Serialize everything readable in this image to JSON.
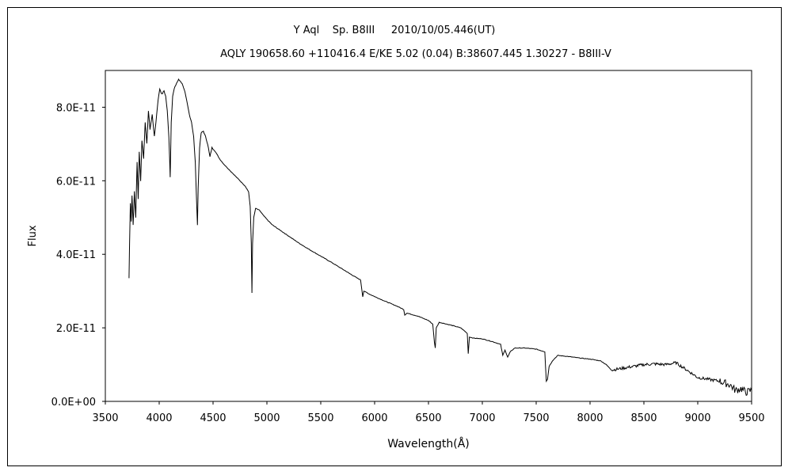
{
  "chart_data": {
    "type": "line",
    "title_lines": [
      "Y Aql    Sp. B8III     2010/10/05.446(UT)",
      "AQLY 190658.60 +110416.4 E/KE 5.02 (0.04) B:38607.445 1.30227 - B8III-V"
    ],
    "xlabel": "Wavelength(Å)",
    "ylabel": "Flux",
    "xlim": [
      3500,
      9500
    ],
    "ylim": [
      0,
      9e-11
    ],
    "xticks": [
      3500,
      4000,
      4500,
      5000,
      5500,
      6000,
      6500,
      7000,
      7500,
      8000,
      8500,
      9000,
      9500
    ],
    "yticks": [
      0,
      2e-11,
      4e-11,
      6e-11,
      8e-11
    ],
    "xtick_labels": [
      "3500",
      "4000",
      "4500",
      "5000",
      "5500",
      "6000",
      "6500",
      "7000",
      "7500",
      "8000",
      "8500",
      "9000",
      "9500"
    ],
    "ytick_labels": [
      "0.0E+00",
      "2.0E-11",
      "4.0E-11",
      "6.0E-11",
      "8.0E-11"
    ],
    "grid": false,
    "line_color": "#000000",
    "series": [
      {
        "points": [
          [
            3720,
            3.35e-11
          ],
          [
            3725,
            4.3e-11
          ],
          [
            3732,
            5.4e-11
          ],
          [
            3740,
            4.9e-11
          ],
          [
            3748,
            5.6e-11
          ],
          [
            3758,
            4.8e-11
          ],
          [
            3770,
            5.7e-11
          ],
          [
            3782,
            5e-11
          ],
          [
            3795,
            6.5e-11
          ],
          [
            3805,
            5.5e-11
          ],
          [
            3815,
            6.8e-11
          ],
          [
            3828,
            6e-11
          ],
          [
            3840,
            7.1e-11
          ],
          [
            3855,
            6.6e-11
          ],
          [
            3870,
            7.6e-11
          ],
          [
            3885,
            7e-11
          ],
          [
            3900,
            7.9e-11
          ],
          [
            3915,
            7.4e-11
          ],
          [
            3935,
            7.8e-11
          ],
          [
            3955,
            7.2e-11
          ],
          [
            3970,
            7.6e-11
          ],
          [
            3990,
            8.2e-11
          ],
          [
            4005,
            8.5e-11
          ],
          [
            4025,
            8.35e-11
          ],
          [
            4045,
            8.45e-11
          ],
          [
            4060,
            8.3e-11
          ],
          [
            4075,
            7.9e-11
          ],
          [
            4090,
            7.2e-11
          ],
          [
            4102,
            6.1e-11
          ],
          [
            4112,
            7.6e-11
          ],
          [
            4125,
            8.3e-11
          ],
          [
            4140,
            8.5e-11
          ],
          [
            4160,
            8.65e-11
          ],
          [
            4180,
            8.75e-11
          ],
          [
            4200,
            8.7e-11
          ],
          [
            4220,
            8.6e-11
          ],
          [
            4240,
            8.4e-11
          ],
          [
            4260,
            8.1e-11
          ],
          [
            4280,
            7.8e-11
          ],
          [
            4300,
            7.6e-11
          ],
          [
            4320,
            7.2e-11
          ],
          [
            4335,
            6.5e-11
          ],
          [
            4348,
            5.4e-11
          ],
          [
            4355,
            4.8e-11
          ],
          [
            4362,
            5.8e-11
          ],
          [
            4375,
            6.9e-11
          ],
          [
            4390,
            7.3e-11
          ],
          [
            4410,
            7.35e-11
          ],
          [
            4430,
            7.2e-11
          ],
          [
            4450,
            7e-11
          ],
          [
            4471,
            6.65e-11
          ],
          [
            4490,
            6.9e-11
          ],
          [
            4520,
            6.8e-11
          ],
          [
            4560,
            6.6e-11
          ],
          [
            4600,
            6.45e-11
          ],
          [
            4650,
            6.3e-11
          ],
          [
            4700,
            6.15e-11
          ],
          [
            4750,
            6e-11
          ],
          [
            4800,
            5.85e-11
          ],
          [
            4830,
            5.7e-11
          ],
          [
            4845,
            5.3e-11
          ],
          [
            4855,
            4.3e-11
          ],
          [
            4861,
            2.95e-11
          ],
          [
            4867,
            4.3e-11
          ],
          [
            4878,
            5e-11
          ],
          [
            4895,
            5.25e-11
          ],
          [
            4930,
            5.2e-11
          ],
          [
            4970,
            5.05e-11
          ],
          [
            5000,
            4.95e-11
          ],
          [
            5050,
            4.8e-11
          ],
          [
            5100,
            4.7e-11
          ],
          [
            5150,
            4.6e-11
          ],
          [
            5200,
            4.5e-11
          ],
          [
            5300,
            4.3e-11
          ],
          [
            5400,
            4.12e-11
          ],
          [
            5500,
            3.95e-11
          ],
          [
            5600,
            3.78e-11
          ],
          [
            5700,
            3.6e-11
          ],
          [
            5800,
            3.42e-11
          ],
          [
            5870,
            3.3e-11
          ],
          [
            5890,
            2.85e-11
          ],
          [
            5900,
            3e-11
          ],
          [
            5950,
            2.92e-11
          ],
          [
            6000,
            2.85e-11
          ],
          [
            6100,
            2.72e-11
          ],
          [
            6200,
            2.6e-11
          ],
          [
            6270,
            2.5e-11
          ],
          [
            6280,
            2.35e-11
          ],
          [
            6300,
            2.4e-11
          ],
          [
            6400,
            2.32e-11
          ],
          [
            6500,
            2.2e-11
          ],
          [
            6540,
            2.1e-11
          ],
          [
            6555,
            1.6e-11
          ],
          [
            6563,
            1.45e-11
          ],
          [
            6572,
            2e-11
          ],
          [
            6600,
            2.15e-11
          ],
          [
            6700,
            2.08e-11
          ],
          [
            6800,
            2e-11
          ],
          [
            6860,
            1.85e-11
          ],
          [
            6869,
            1.3e-11
          ],
          [
            6880,
            1.75e-11
          ],
          [
            6920,
            1.72e-11
          ],
          [
            7000,
            1.7e-11
          ],
          [
            7100,
            1.62e-11
          ],
          [
            7170,
            1.55e-11
          ],
          [
            7190,
            1.25e-11
          ],
          [
            7210,
            1.4e-11
          ],
          [
            7235,
            1.2e-11
          ],
          [
            7260,
            1.35e-11
          ],
          [
            7300,
            1.45e-11
          ],
          [
            7400,
            1.45e-11
          ],
          [
            7500,
            1.42e-11
          ],
          [
            7580,
            1.35e-11
          ],
          [
            7594,
            5.5e-12
          ],
          [
            7605,
            6e-12
          ],
          [
            7620,
            9.5e-12
          ],
          [
            7650,
            1.1e-11
          ],
          [
            7700,
            1.25e-11
          ],
          [
            7800,
            1.22e-11
          ],
          [
            7900,
            1.18e-11
          ],
          [
            8000,
            1.15e-11
          ],
          [
            8100,
            1.1e-11
          ],
          [
            8150,
            1e-11
          ],
          [
            8200,
            8.5e-12
          ],
          [
            8300,
            9e-12
          ],
          [
            8400,
            9.5e-12
          ],
          [
            8500,
            1e-11
          ],
          [
            8600,
            1.02e-11
          ],
          [
            8700,
            1e-11
          ],
          [
            8800,
            1.05e-11
          ],
          [
            8850,
            9.5e-12
          ],
          [
            8900,
            8.5e-12
          ],
          [
            8950,
            7.5e-12
          ],
          [
            9000,
            6.5e-12
          ],
          [
            9100,
            6e-12
          ],
          [
            9200,
            5.5e-12
          ],
          [
            9300,
            4.5e-12
          ],
          [
            9350,
            3e-12
          ],
          [
            9400,
            3.5e-12
          ],
          [
            9450,
            2.5e-12
          ],
          [
            9500,
            3e-12
          ]
        ]
      }
    ]
  }
}
